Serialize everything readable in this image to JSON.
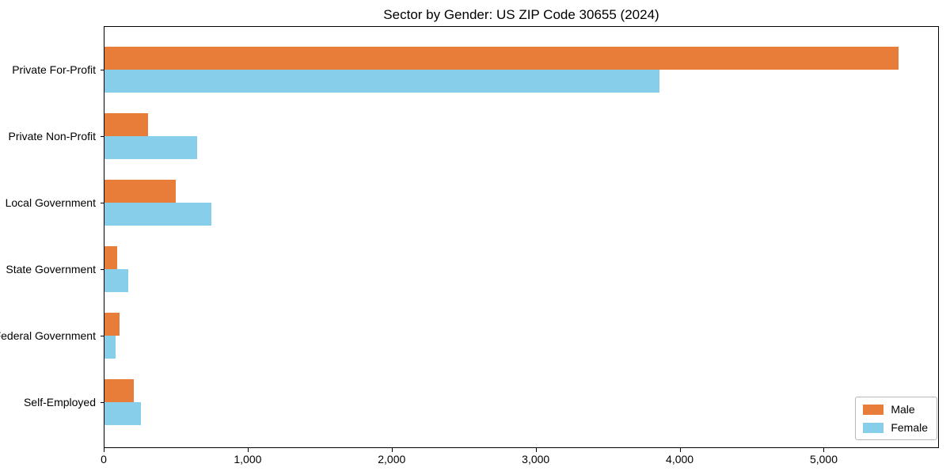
{
  "chart_data": {
    "type": "bar",
    "orientation": "horizontal",
    "title": "Sector by Gender: US ZIP Code 30655 (2024)",
    "categories": [
      "Private For-Profit",
      "Private Non-Profit",
      "Local Government",
      "State Government",
      "Federal Government",
      "Self-Employed"
    ],
    "series": [
      {
        "name": "Male",
        "color": "#E87D3A",
        "values": [
          5520,
          310,
          500,
          95,
          110,
          210
        ]
      },
      {
        "name": "Female",
        "color": "#87CEEB",
        "values": [
          3860,
          650,
          750,
          170,
          80,
          260
        ]
      }
    ],
    "xlabel": "",
    "ylabel": "",
    "xlim": [
      0,
      5800
    ],
    "x_ticks": [
      0,
      1000,
      2000,
      3000,
      4000,
      5000
    ],
    "x_tick_labels": [
      "0",
      "1,000",
      "2,000",
      "3,000",
      "4,000",
      "5,000"
    ],
    "grid": false,
    "legend_position": "lower right"
  }
}
